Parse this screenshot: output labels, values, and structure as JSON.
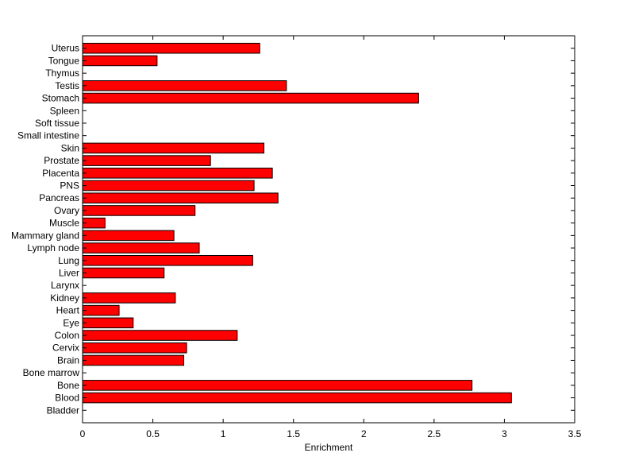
{
  "chart_data": {
    "type": "bar",
    "orientation": "horizontal",
    "categories": [
      "Bladder",
      "Blood",
      "Bone",
      "Bone marrow",
      "Brain",
      "Cervix",
      "Colon",
      "Eye",
      "Heart",
      "Kidney",
      "Larynx",
      "Liver",
      "Lung",
      "Lymph node",
      "Mammary gland",
      "Muscle",
      "Ovary",
      "Pancreas",
      "PNS",
      "Placenta",
      "Prostate",
      "Skin",
      "Small intestine",
      "Soft tissue",
      "Spleen",
      "Stomach",
      "Testis",
      "Thymus",
      "Tongue",
      "Uterus"
    ],
    "values": [
      0,
      3.05,
      2.77,
      0,
      0.72,
      0.74,
      1.1,
      0.36,
      0.26,
      0.66,
      0,
      0.58,
      1.21,
      0.83,
      0.65,
      0.16,
      0.8,
      1.39,
      1.22,
      1.35,
      0.91,
      1.29,
      0,
      0,
      0,
      2.39,
      1.45,
      0,
      0.53,
      1.26
    ],
    "xlabel": "Enrichment",
    "ylabel": "",
    "title": "",
    "xlim": [
      0,
      3.5
    ],
    "xticks": [
      "0",
      "0.5",
      "1",
      "1.5",
      "2",
      "2.5",
      "3",
      "3.5"
    ],
    "grid": false,
    "bar_color": "#ff0000",
    "edge_color": "#000000"
  }
}
